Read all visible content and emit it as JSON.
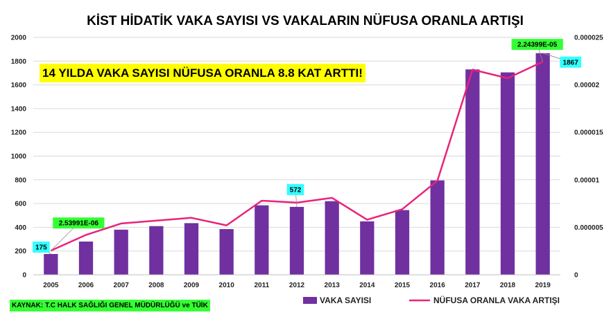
{
  "chart_data": {
    "type": "bar+line",
    "title": "KİST HİDATİK VAKA SAYISI VS VAKALARIN NÜFUSA ORANLA ARTIŞI",
    "categories": [
      "2005",
      "2006",
      "2007",
      "2008",
      "2009",
      "2010",
      "2011",
      "2012",
      "2013",
      "2014",
      "2015",
      "2016",
      "2017",
      "2018",
      "2019"
    ],
    "series": [
      {
        "name": "VAKA SAYISI",
        "type": "bar",
        "axis": "left",
        "color": "#7030a0",
        "values": [
          175,
          280,
          380,
          410,
          435,
          385,
          585,
          572,
          620,
          450,
          545,
          795,
          1730,
          1705,
          1867
        ]
      },
      {
        "name": "NÜFUSA ORANLA VAKA ARTIŞI",
        "type": "line",
        "axis": "right",
        "color": "#e8237a",
        "values": [
          2.53991e-06,
          4.2e-06,
          5.4e-06,
          5.7e-06,
          6e-06,
          5.2e-06,
          7.8e-06,
          7.6e-06,
          8.1e-06,
          5.8e-06,
          6.9e-06,
          9.9e-06,
          2.16e-05,
          2.07e-05,
          2.24399e-05
        ]
      }
    ],
    "y_left": {
      "min": 0,
      "max": 2000,
      "step": 200,
      "ticks": [
        "0",
        "200",
        "400",
        "600",
        "800",
        "1000",
        "1200",
        "1400",
        "1600",
        "1800",
        "2000"
      ]
    },
    "y_right": {
      "min": 0,
      "max": 2.5e-05,
      "step": 5e-06,
      "ticks": [
        "0",
        "0.000005",
        "0.00001",
        "0.000015",
        "0.00002",
        "0.000025"
      ]
    },
    "grid": true,
    "legend": "bottom-right",
    "annotations": [
      {
        "text": "175",
        "series": "VAKA SAYISI",
        "index": 0,
        "bg": "#33ffff"
      },
      {
        "text": "572",
        "series": "VAKA SAYISI",
        "index": 7,
        "bg": "#33ffff"
      },
      {
        "text": "1867",
        "series": "VAKA SAYISI",
        "index": 14,
        "bg": "#33ffff"
      },
      {
        "text": "2.53991E-06",
        "series": "NÜFUSA ORANLA VAKA ARTIŞI",
        "index": 0,
        "bg": "#33ff33"
      },
      {
        "text": "2.24399E-05",
        "series": "NÜFUSA ORANLA VAKA ARTIŞI",
        "index": 14,
        "bg": "#33ff33"
      }
    ],
    "headline": "14 YILDA VAKA SAYISI NÜFUSA ORANLA 8.8 KAT ARTTI!",
    "source": "KAYNAK: T.C HALK SAĞLIĞI GENEL MÜDÜRLÜĞÜ  ve TÜİK"
  }
}
